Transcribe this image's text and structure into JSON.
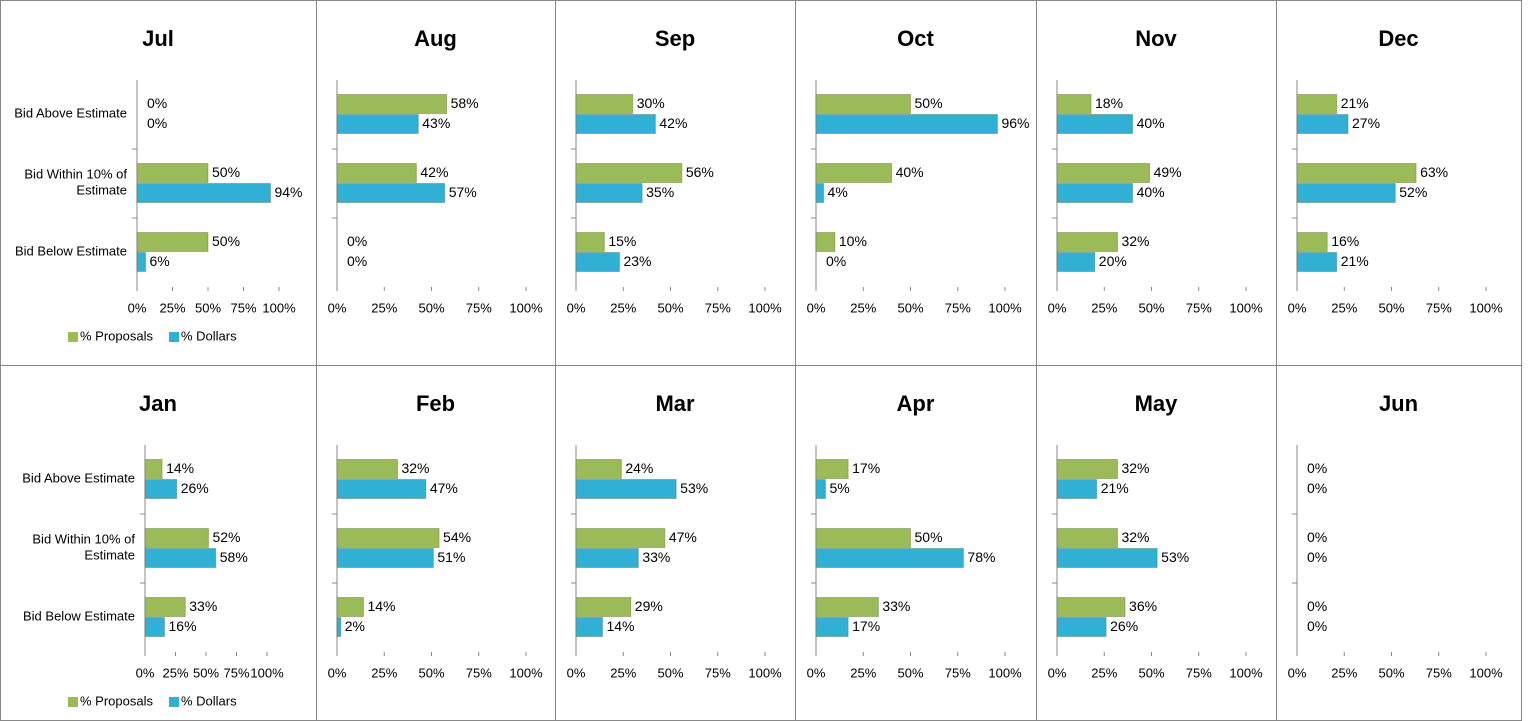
{
  "chart_data": [
    {
      "type": "bar",
      "title": "Jul",
      "categories": [
        "Bid Above Estimate",
        "Bid Within 10% of Estimate",
        "Bid Below Estimate"
      ],
      "legend": "bottom",
      "series": [
        {
          "name": "% Proposals",
          "color": "#9bbb59",
          "values": [
            0,
            50,
            50
          ],
          "value_labels": [
            "0%",
            "50%",
            "50%"
          ]
        },
        {
          "name": "% Dollars",
          "color": "#31b0d5",
          "values": [
            0,
            94,
            6
          ],
          "value_labels": [
            "0%",
            "94%",
            "6%"
          ]
        }
      ],
      "xlim": [
        0,
        100
      ],
      "xticks": [
        {
          "value": 0,
          "label": "0%"
        },
        {
          "value": 25,
          "label": "25%"
        },
        {
          "value": 50,
          "label": "50%"
        },
        {
          "value": 75,
          "label": "75%"
        },
        {
          "value": 100,
          "label": "100%"
        }
      ]
    },
    {
      "type": "bar",
      "title": "Aug",
      "categories": [
        null,
        null,
        null
      ],
      "series": [
        {
          "color": "#9bbb59",
          "values": [
            58,
            42,
            0
          ],
          "value_labels": [
            "58%",
            "42%",
            "0%"
          ]
        },
        {
          "color": "#31b0d5",
          "values": [
            43,
            57,
            0
          ],
          "value_labels": [
            "43%",
            "57%",
            "0%"
          ]
        }
      ],
      "xlim": [
        0,
        100
      ],
      "xticks": [
        {
          "value": 0,
          "label": "0%"
        },
        {
          "value": 25,
          "label": "25%"
        },
        {
          "value": 50,
          "label": "50%"
        },
        {
          "value": 75,
          "label": "75%"
        },
        {
          "value": 100,
          "label": "100%"
        }
      ]
    },
    {
      "type": "bar",
      "title": "Sep",
      "categories": [
        null,
        null,
        null
      ],
      "series": [
        {
          "color": "#9bbb59",
          "values": [
            30,
            56,
            15
          ],
          "value_labels": [
            "30%",
            "56%",
            "15%"
          ]
        },
        {
          "color": "#31b0d5",
          "values": [
            42,
            35,
            23
          ],
          "value_labels": [
            "42%",
            "35%",
            "23%"
          ]
        }
      ],
      "xlim": [
        0,
        100
      ],
      "xticks": [
        {
          "value": 0,
          "label": "0%"
        },
        {
          "value": 25,
          "label": "25%"
        },
        {
          "value": 50,
          "label": "50%"
        },
        {
          "value": 75,
          "label": "75%"
        },
        {
          "value": 100,
          "label": "100%"
        }
      ]
    },
    {
      "type": "bar",
      "title": "Oct",
      "categories": [
        null,
        null,
        null
      ],
      "series": [
        {
          "color": "#9bbb59",
          "values": [
            50,
            40,
            10
          ],
          "value_labels": [
            "50%",
            "40%",
            "10%"
          ]
        },
        {
          "color": "#31b0d5",
          "values": [
            96,
            4,
            0
          ],
          "value_labels": [
            "96%",
            "4%",
            "0%"
          ]
        }
      ],
      "xlim": [
        0,
        100
      ],
      "xticks": [
        {
          "value": 0,
          "label": "0%"
        },
        {
          "value": 25,
          "label": "25%"
        },
        {
          "value": 50,
          "label": "50%"
        },
        {
          "value": 75,
          "label": "75%"
        },
        {
          "value": 100,
          "label": "100%"
        }
      ]
    },
    {
      "type": "bar",
      "title": "Nov",
      "categories": [
        null,
        null,
        null
      ],
      "series": [
        {
          "color": "#9bbb59",
          "values": [
            18,
            49,
            32
          ],
          "value_labels": [
            "18%",
            "49%",
            "32%"
          ]
        },
        {
          "color": "#31b0d5",
          "values": [
            40,
            40,
            20
          ],
          "value_labels": [
            "40%",
            "40%",
            "20%"
          ]
        }
      ],
      "xlim": [
        0,
        100
      ],
      "xticks": [
        {
          "value": 0,
          "label": "0%"
        },
        {
          "value": 25,
          "label": "25%"
        },
        {
          "value": 50,
          "label": "50%"
        },
        {
          "value": 75,
          "label": "75%"
        },
        {
          "value": 100,
          "label": "100%"
        }
      ]
    },
    {
      "type": "bar",
      "title": "Dec",
      "categories": [
        null,
        null,
        null
      ],
      "series": [
        {
          "color": "#9bbb59",
          "values": [
            21,
            63,
            16
          ],
          "value_labels": [
            "21%",
            "63%",
            "16%"
          ]
        },
        {
          "color": "#31b0d5",
          "values": [
            27,
            52,
            21
          ],
          "value_labels": [
            "27%",
            "52%",
            "21%"
          ]
        }
      ],
      "xlim": [
        0,
        100
      ],
      "xticks": [
        {
          "value": 0,
          "label": "0%"
        },
        {
          "value": 25,
          "label": "25%"
        },
        {
          "value": 50,
          "label": "50%"
        },
        {
          "value": 75,
          "label": "75%"
        },
        {
          "value": 100,
          "label": "100%"
        }
      ]
    },
    {
      "type": "bar",
      "title": "Jan",
      "categories": [
        "Bid Above Estimate",
        "Bid Within 10% of Estimate",
        "Bid Below Estimate"
      ],
      "legend": "bottom",
      "series": [
        {
          "name": "% Proposals",
          "color": "#9bbb59",
          "values": [
            14,
            52,
            33
          ],
          "value_labels": [
            "14%",
            "52%",
            "33%"
          ]
        },
        {
          "name": "% Dollars",
          "color": "#31b0d5",
          "values": [
            26,
            58,
            16
          ],
          "value_labels": [
            "26%",
            "58%",
            "16%"
          ]
        }
      ],
      "xlim": [
        0,
        100
      ],
      "xticks": [
        {
          "value": 0,
          "label": "0%"
        },
        {
          "value": 25,
          "label": "25%"
        },
        {
          "value": 50,
          "label": "50%"
        },
        {
          "value": 75,
          "label": "75%"
        },
        {
          "value": 100,
          "label": "100%"
        }
      ]
    },
    {
      "type": "bar",
      "title": "Feb",
      "categories": [
        null,
        null,
        null
      ],
      "series": [
        {
          "color": "#9bbb59",
          "values": [
            32,
            54,
            14
          ],
          "value_labels": [
            "32%",
            "54%",
            "14%"
          ]
        },
        {
          "color": "#31b0d5",
          "values": [
            47,
            51,
            2
          ],
          "value_labels": [
            "47%",
            "51%",
            "2%"
          ]
        }
      ],
      "xlim": [
        0,
        100
      ],
      "xticks": [
        {
          "value": 0,
          "label": "0%"
        },
        {
          "value": 25,
          "label": "25%"
        },
        {
          "value": 50,
          "label": "50%"
        },
        {
          "value": 75,
          "label": "75%"
        },
        {
          "value": 100,
          "label": "100%"
        }
      ]
    },
    {
      "type": "bar",
      "title": "Mar",
      "categories": [
        null,
        null,
        null
      ],
      "series": [
        {
          "color": "#9bbb59",
          "values": [
            24,
            47,
            29
          ],
          "value_labels": [
            "24%",
            "47%",
            "29%"
          ]
        },
        {
          "color": "#31b0d5",
          "values": [
            53,
            33,
            14
          ],
          "value_labels": [
            "53%",
            "33%",
            "14%"
          ]
        }
      ],
      "xlim": [
        0,
        100
      ],
      "xticks": [
        {
          "value": 0,
          "label": "0%"
        },
        {
          "value": 25,
          "label": "25%"
        },
        {
          "value": 50,
          "label": "50%"
        },
        {
          "value": 75,
          "label": "75%"
        },
        {
          "value": 100,
          "label": "100%"
        }
      ]
    },
    {
      "type": "bar",
      "title": "Apr",
      "categories": [
        null,
        null,
        null
      ],
      "series": [
        {
          "color": "#9bbb59",
          "values": [
            17,
            50,
            33
          ],
          "value_labels": [
            "17%",
            "50%",
            "33%"
          ]
        },
        {
          "color": "#31b0d5",
          "values": [
            5,
            78,
            17
          ],
          "value_labels": [
            "5%",
            "78%",
            "17%"
          ]
        }
      ],
      "xlim": [
        0,
        100
      ],
      "xticks": [
        {
          "value": 0,
          "label": "0%"
        },
        {
          "value": 25,
          "label": "25%"
        },
        {
          "value": 50,
          "label": "50%"
        },
        {
          "value": 75,
          "label": "75%"
        },
        {
          "value": 100,
          "label": "100%"
        }
      ]
    },
    {
      "type": "bar",
      "title": "May",
      "categories": [
        null,
        null,
        null
      ],
      "series": [
        {
          "color": "#9bbb59",
          "values": [
            32,
            32,
            36
          ],
          "value_labels": [
            "32%",
            "32%",
            "36%"
          ]
        },
        {
          "color": "#31b0d5",
          "values": [
            21,
            53,
            26
          ],
          "value_labels": [
            "21%",
            "53%",
            "26%"
          ]
        }
      ],
      "xlim": [
        0,
        100
      ],
      "xticks": [
        {
          "value": 0,
          "label": "0%"
        },
        {
          "value": 25,
          "label": "25%"
        },
        {
          "value": 50,
          "label": "50%"
        },
        {
          "value": 75,
          "label": "75%"
        },
        {
          "value": 100,
          "label": "100%"
        }
      ]
    },
    {
      "type": "bar",
      "title": "Jun",
      "categories": [
        null,
        null,
        null
      ],
      "series": [
        {
          "color": "#9bbb59",
          "values": [
            0,
            0,
            0
          ],
          "value_labels": [
            "0%",
            "0%",
            "0%"
          ]
        },
        {
          "color": "#31b0d5",
          "values": [
            0,
            0,
            0
          ],
          "value_labels": [
            "0%",
            "0%",
            "0%"
          ]
        }
      ],
      "xlim": [
        0,
        100
      ],
      "xticks": [
        {
          "value": 0,
          "label": "0%"
        },
        {
          "value": 25,
          "label": "25%"
        },
        {
          "value": 50,
          "label": "50%"
        },
        {
          "value": 75,
          "label": "75%"
        },
        {
          "value": 100,
          "label": "100%"
        }
      ]
    }
  ]
}
